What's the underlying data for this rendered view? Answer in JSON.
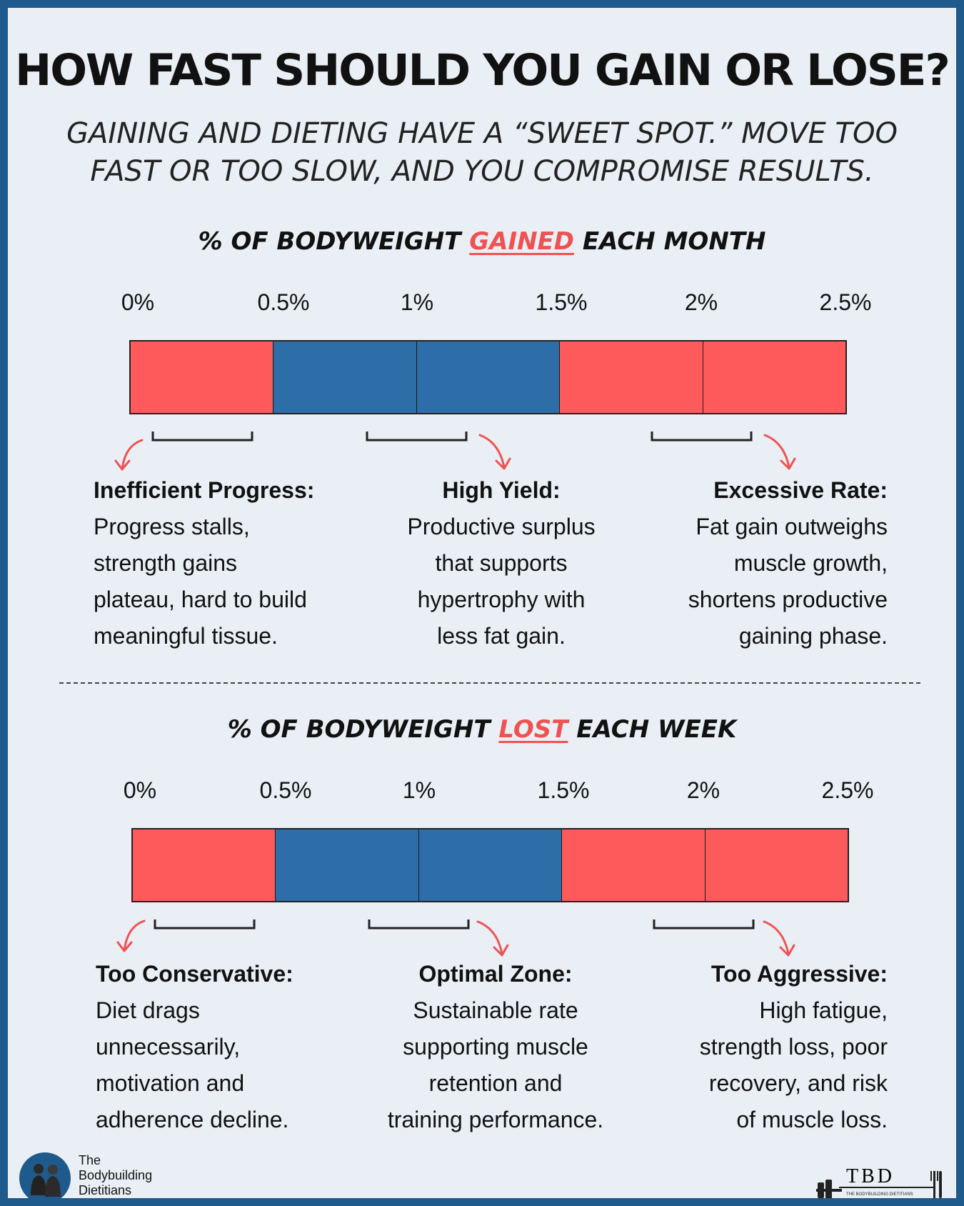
{
  "title": "HOW FAST SHOULD YOU GAIN OR LOSE?",
  "subtitle": {
    "line1": "GAINING AND DIETING HAVE A “SWEET SPOT.” MOVE TOO",
    "line2": "FAST OR TOO SLOW, AND YOU COMPROMISE RESULTS."
  },
  "colors": {
    "optimal": "#2d6ea8",
    "suboptimal": "#fe5a5b",
    "accent": "#ef5253",
    "border": "#1f5a8c"
  },
  "gain_section": {
    "heading_pre": "% OF BODYWEIGHT ",
    "heading_highlight": "GAINED",
    "heading_post": " EACH MONTH",
    "ticks": [
      "0%",
      "0.5%",
      "1%",
      "1.5%",
      "2%",
      "2.5%"
    ],
    "segments": [
      "suboptimal",
      "optimal",
      "optimal",
      "suboptimal",
      "suboptimal"
    ],
    "zones": [
      {
        "label": "Inefficient Progress:",
        "lines": [
          "Progress stalls,",
          "strength gains",
          "plateau, hard to build",
          "meaningful tissue."
        ]
      },
      {
        "label": "High Yield:",
        "lines": [
          "Productive surplus",
          "that supports",
          "hypertrophy with",
          "less fat gain."
        ]
      },
      {
        "label": "Excessive Rate:",
        "lines": [
          "Fat gain outweighs",
          "muscle growth,",
          "shortens productive",
          "gaining phase."
        ]
      }
    ]
  },
  "loss_section": {
    "heading_pre": "% OF BODYWEIGHT ",
    "heading_highlight": "LOST",
    "heading_post": " EACH WEEK",
    "ticks": [
      "0%",
      "0.5%",
      "1%",
      "1.5%",
      "2%",
      "2.5%"
    ],
    "segments": [
      "suboptimal",
      "optimal",
      "optimal",
      "suboptimal",
      "suboptimal"
    ],
    "zones": [
      {
        "label": "Too Conservative:",
        "lines": [
          "Diet drags",
          "unnecessarily,",
          "motivation and",
          "adherence decline."
        ]
      },
      {
        "label": "Optimal Zone:",
        "lines": [
          "Sustainable rate",
          "supporting muscle",
          "retention and",
          "training performance."
        ]
      },
      {
        "label": "Too Aggressive:",
        "lines": [
          "High fatigue,",
          "strength loss, poor",
          "recovery, and risk",
          "of muscle loss."
        ]
      }
    ]
  },
  "footer": {
    "brand_lines": [
      "The",
      "Bodybuilding",
      "Dietitians"
    ],
    "logo_text": "TBD",
    "logo_subtext": "THE BODYBUILDING DIETITIANS"
  }
}
